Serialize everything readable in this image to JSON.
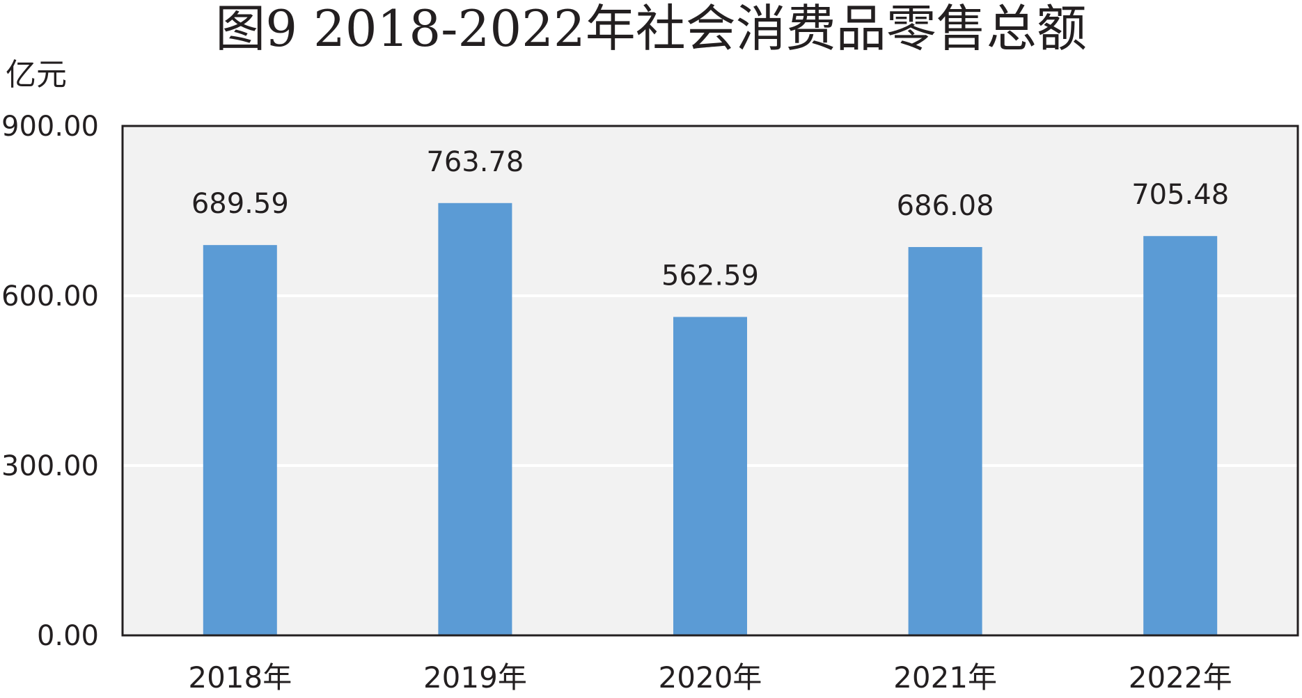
{
  "chart_data": {
    "type": "bar",
    "title": "图9  2018-2022年社会消费品零售总额",
    "ylabel": "亿元",
    "xlabel": "",
    "categories": [
      "2018年",
      "2019年",
      "2020年",
      "2021年",
      "2022年"
    ],
    "values": [
      689.59,
      763.78,
      562.59,
      686.08,
      705.48
    ],
    "data_labels": [
      "689.59",
      "763.78",
      "562.59",
      "686.08",
      "705.48"
    ],
    "ylim": [
      0,
      900
    ],
    "yticks": [
      0,
      300,
      600,
      900
    ],
    "ytick_labels": [
      "0.00",
      "300.00",
      "600.00",
      "900.00"
    ],
    "grid": true,
    "legend": "none",
    "colors": {
      "bar": "#5b9bd5",
      "plot_background": "#f2f2f2",
      "gridline": "#ffffff",
      "frame": "#231f20",
      "text": "#231f20"
    }
  }
}
